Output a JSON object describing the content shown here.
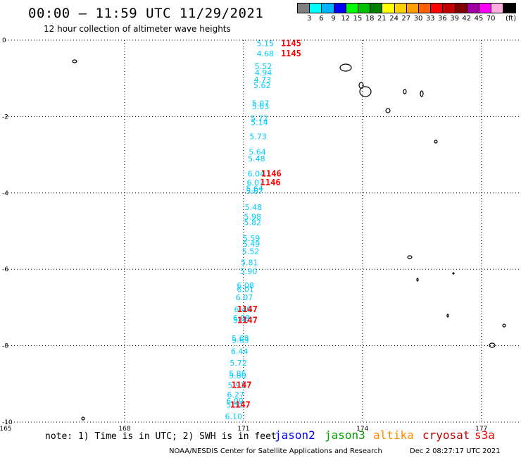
{
  "header": {
    "title": "00:00 – 11:59 UTC 11/29/2021",
    "subtitle": "12 hour collection of altimeter wave heights"
  },
  "legend": {
    "unit": "(ft)",
    "bins": [
      {
        "label": "",
        "color": "#808080"
      },
      {
        "label": "3",
        "color": "#00ffff"
      },
      {
        "label": "6",
        "color": "#00b4ff"
      },
      {
        "label": "9",
        "color": "#0000ff"
      },
      {
        "label": "12",
        "color": "#00ff00"
      },
      {
        "label": "15",
        "color": "#00c000"
      },
      {
        "label": "18",
        "color": "#008000"
      },
      {
        "label": "21",
        "color": "#ffff00"
      },
      {
        "label": "24",
        "color": "#ffd000"
      },
      {
        "label": "27",
        "color": "#ffa000"
      },
      {
        "label": "30",
        "color": "#ff6000"
      },
      {
        "label": "33",
        "color": "#ff0000"
      },
      {
        "label": "36",
        "color": "#c00000"
      },
      {
        "label": "39",
        "color": "#800000"
      },
      {
        "label": "42",
        "color": "#a000a0"
      },
      {
        "label": "45",
        "color": "#ff00ff"
      },
      {
        "label": "70",
        "color": "#ffb0e0"
      },
      {
        "label": "",
        "color": "#000000"
      }
    ]
  },
  "chart_data": {
    "type": "scatter",
    "xlim": [
      165,
      178
    ],
    "ylim": [
      -10,
      0
    ],
    "x_ticks": [
      165,
      168,
      171,
      174,
      177
    ],
    "x_tick_labels": [
      "165",
      "168",
      "171",
      "174",
      "177"
    ],
    "y_ticks": [
      0,
      -2,
      -4,
      -6,
      -8,
      -10
    ],
    "y_tick_labels": [
      "0",
      "-2",
      "-4",
      "-6",
      "-8",
      "-10"
    ],
    "grid": true,
    "wave_heights": [
      {
        "lon": 171.55,
        "lat": -0.08,
        "label": "5.15"
      },
      {
        "lon": 171.55,
        "lat": -0.35,
        "label": "4.68"
      },
      {
        "lon": 171.5,
        "lat": -0.68,
        "label": "5.52"
      },
      {
        "lon": 171.5,
        "lat": -0.85,
        "label": "4.94"
      },
      {
        "lon": 171.48,
        "lat": -1.03,
        "label": "4.73"
      },
      {
        "lon": 171.47,
        "lat": -1.18,
        "label": "5.62"
      },
      {
        "lon": 171.43,
        "lat": -1.65,
        "label": "5.07"
      },
      {
        "lon": 171.43,
        "lat": -1.73,
        "label": "5.03"
      },
      {
        "lon": 171.4,
        "lat": -2.05,
        "label": "5.72"
      },
      {
        "lon": 171.4,
        "lat": -2.15,
        "label": "5.14"
      },
      {
        "lon": 171.37,
        "lat": -2.52,
        "label": "5.73"
      },
      {
        "lon": 171.35,
        "lat": -2.92,
        "label": "5.64"
      },
      {
        "lon": 171.33,
        "lat": -3.1,
        "label": "5.48"
      },
      {
        "lon": 171.32,
        "lat": -3.5,
        "label": "6.04"
      },
      {
        "lon": 171.3,
        "lat": -3.73,
        "label": "6.07"
      },
      {
        "lon": 171.28,
        "lat": -3.88,
        "label": "5.64"
      },
      {
        "lon": 171.28,
        "lat": -3.95,
        "label": "5.67"
      },
      {
        "lon": 171.25,
        "lat": -4.37,
        "label": "5.48"
      },
      {
        "lon": 171.23,
        "lat": -4.62,
        "label": "5.98"
      },
      {
        "lon": 171.23,
        "lat": -4.77,
        "label": "5.82"
      },
      {
        "lon": 171.2,
        "lat": -5.18,
        "label": "5.59"
      },
      {
        "lon": 171.2,
        "lat": -5.33,
        "label": "5.49"
      },
      {
        "lon": 171.18,
        "lat": -5.53,
        "label": "5.52"
      },
      {
        "lon": 171.15,
        "lat": -5.82,
        "label": "5.81"
      },
      {
        "lon": 171.13,
        "lat": -6.05,
        "label": "5.90"
      },
      {
        "lon": 171.05,
        "lat": -6.42,
        "label": "6.08"
      },
      {
        "lon": 171.05,
        "lat": -6.52,
        "label": "6.01"
      },
      {
        "lon": 171.02,
        "lat": -6.73,
        "label": "6.07"
      },
      {
        "lon": 170.98,
        "lat": -7.05,
        "label": "6.46"
      },
      {
        "lon": 170.95,
        "lat": -7.27,
        "label": "6.09"
      },
      {
        "lon": 170.95,
        "lat": -7.33,
        "label": "5.87"
      },
      {
        "lon": 170.92,
        "lat": -7.8,
        "label": "5.68"
      },
      {
        "lon": 170.92,
        "lat": -7.85,
        "label": "5.63"
      },
      {
        "lon": 170.9,
        "lat": -8.15,
        "label": "6.44"
      },
      {
        "lon": 170.87,
        "lat": -8.45,
        "label": "5.72"
      },
      {
        "lon": 170.85,
        "lat": -8.73,
        "label": "5.86"
      },
      {
        "lon": 170.85,
        "lat": -8.78,
        "label": "5.80"
      },
      {
        "lon": 170.82,
        "lat": -9.03,
        "label": "5.91"
      },
      {
        "lon": 170.8,
        "lat": -9.28,
        "label": "6.27"
      },
      {
        "lon": 170.78,
        "lat": -9.45,
        "label": "6.09"
      },
      {
        "lon": 170.78,
        "lat": -9.55,
        "label": "5.52"
      },
      {
        "lon": 170.75,
        "lat": -9.85,
        "label": "6.10"
      }
    ],
    "times": [
      {
        "lon": 172.2,
        "lat": -0.08,
        "label": "1145"
      },
      {
        "lon": 172.2,
        "lat": -0.35,
        "label": "1145"
      },
      {
        "lon": 171.7,
        "lat": -3.5,
        "label": "1146"
      },
      {
        "lon": 171.68,
        "lat": -3.73,
        "label": "1146"
      },
      {
        "lon": 171.1,
        "lat": -7.05,
        "label": "1147"
      },
      {
        "lon": 171.1,
        "lat": -7.33,
        "label": "1147"
      },
      {
        "lon": 170.95,
        "lat": -9.03,
        "label": "1147"
      },
      {
        "lon": 170.92,
        "lat": -9.55,
        "label": "1147"
      }
    ],
    "wave_color": "#00ccff",
    "time_color": "#ff0000"
  },
  "footer": {
    "note": "note: 1) Time is in UTC; 2) SWH is in feet",
    "satellites": [
      {
        "name": "jason2",
        "color": "#0000ff"
      },
      {
        "name": "jason3",
        "color": "#00a000"
      },
      {
        "name": "altika",
        "color": "#ff8c00"
      },
      {
        "name": "cryosat",
        "color": "#c00000"
      },
      {
        "name": "s3a",
        "color": "#ff0000"
      }
    ],
    "credit": "NOAA/NESDIS Center for Satellite Applications and Research",
    "stamp": "Dec  2 08:27:17 UTC 2021"
  }
}
